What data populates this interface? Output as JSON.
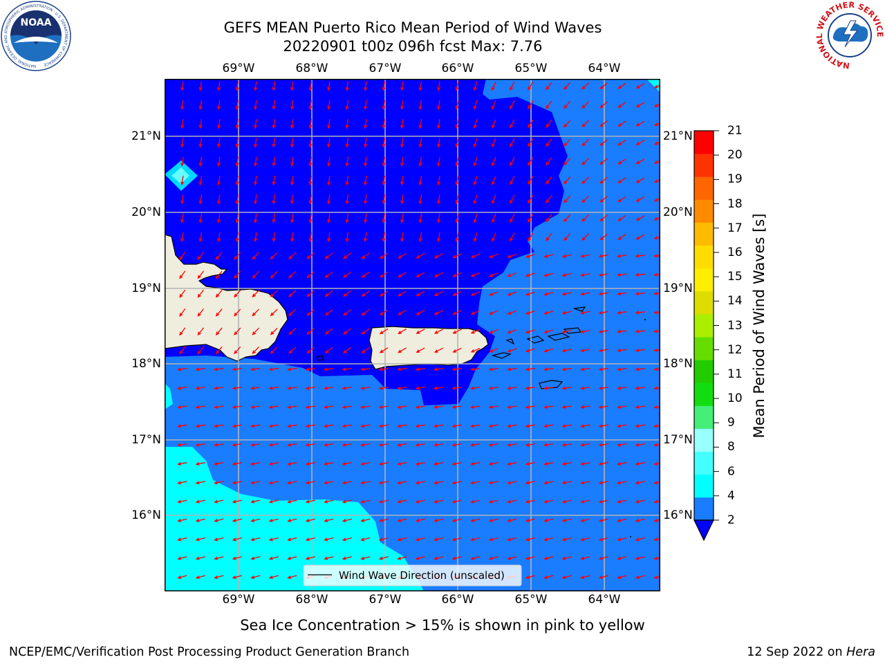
{
  "title": {
    "line1": "GEFS MEAN Puerto Rico Mean Period of Wind Waves",
    "line2": "20220901 t00z 096h fcst   Max: 7.76"
  },
  "logos": {
    "left_name": "NOAA",
    "left_ring_text": "NATIONAL OCEANIC AND ATMOSPHERIC ADMINISTRATION · U.S. DEPARTMENT OF COMMERCE",
    "right_ring_text": "NATIONAL WEATHER SERVICE"
  },
  "map": {
    "lon_labels": [
      "69°W",
      "68°W",
      "67°W",
      "66°W",
      "65°W",
      "64°W"
    ],
    "lat_labels": [
      "21°N",
      "20°N",
      "19°N",
      "18°N",
      "17°N",
      "16°N"
    ],
    "legend_label": "Wind Wave Direction (unscaled)",
    "colors": {
      "band_0_2": "#0000ff",
      "band_2_4": "#1a7cff",
      "band_4_6": "#00ffff",
      "land": "#efedde",
      "arrow": "#ff0000",
      "grid": "#b4b4b4"
    }
  },
  "colorbar": {
    "label": "Mean Period of Wind Waves [s]",
    "ticks": [
      "2",
      "4",
      "6",
      "8",
      "9",
      "10",
      "11",
      "12",
      "13",
      "14",
      "15",
      "16",
      "17",
      "18",
      "19",
      "20",
      "21"
    ],
    "colors": [
      "#1a7cff",
      "#00ffff",
      "#44ffff",
      "#99ffff",
      "#44ee77",
      "#11dd11",
      "#22cc00",
      "#66dd00",
      "#aaee00",
      "#dddd00",
      "#ffee00",
      "#ffdd00",
      "#ffbb00",
      "#ff8c00",
      "#ff6600",
      "#ff3300",
      "#ff0000"
    ],
    "extend_color": "#0000ff"
  },
  "subtitle": "Sea Ice Concentration > 15% is shown in pink to yellow",
  "footer": {
    "left": "NCEP/EMC/Verification Post Processing Product Generation Branch",
    "date": "12 Sep 2022 on ",
    "host": "Hera"
  }
}
